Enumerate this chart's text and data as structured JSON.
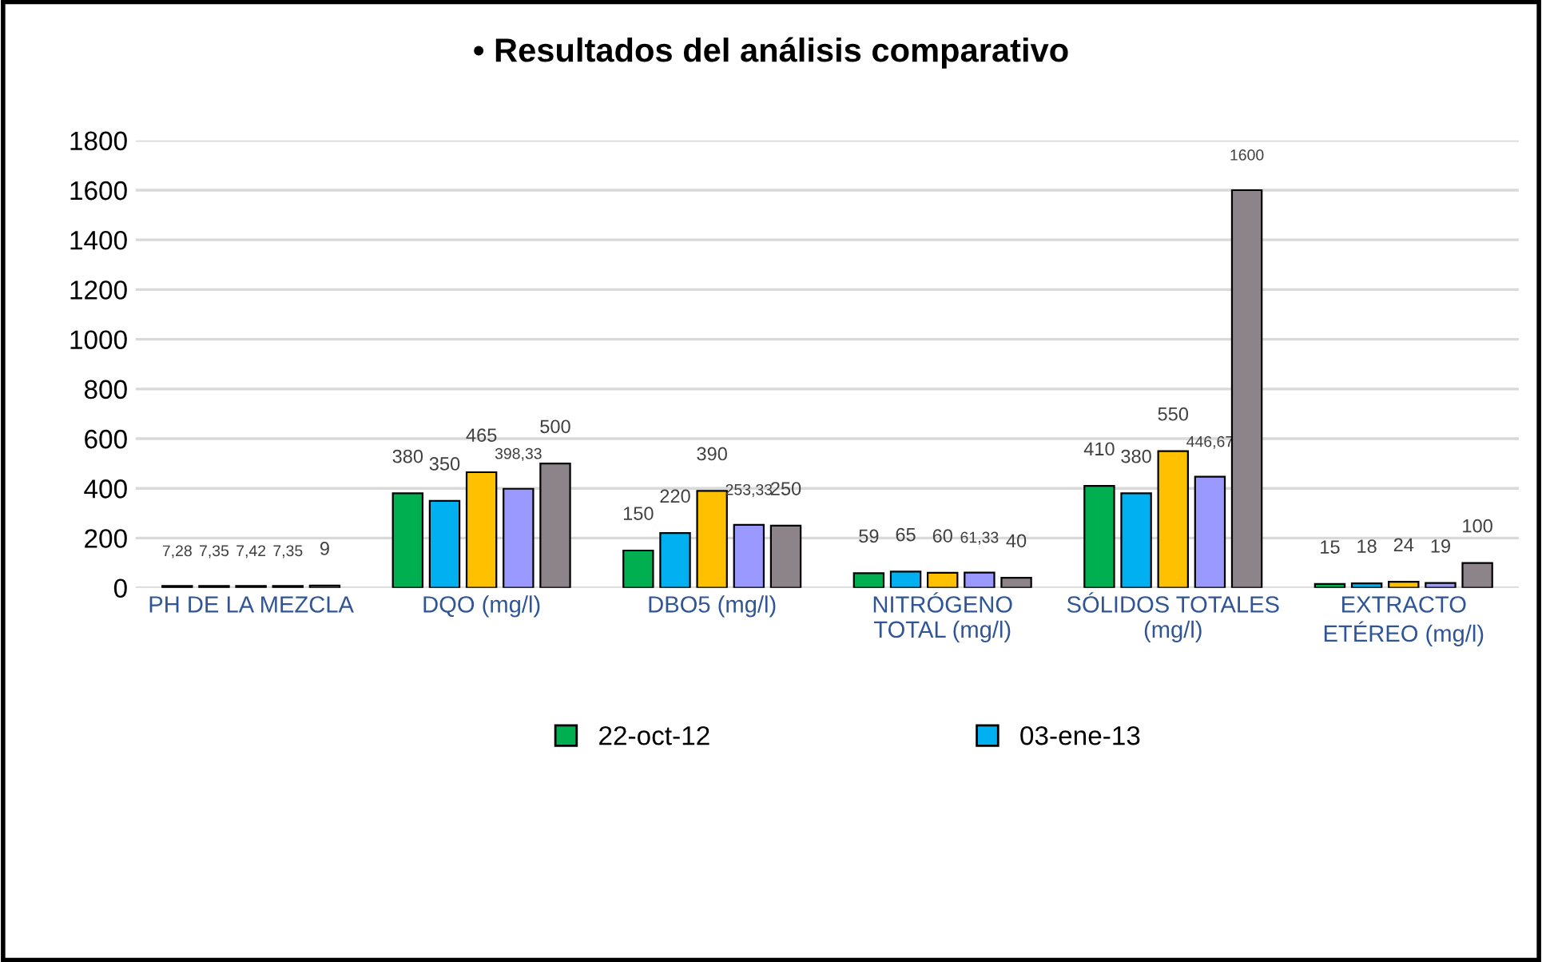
{
  "chart_data": {
    "type": "bar",
    "title": "• Resultados del análisis comparativo",
    "categories": [
      "PH DE LA MEZCLA",
      "DQO (mg/l)",
      "DBO5 (mg/l)",
      "NITRÓGENO\nTOTAL (mg/l)",
      "SÓLIDOS TOTALES\n(mg/l)",
      "EXTRACTO\nETÉREO (mg/l)"
    ],
    "series": [
      {
        "name": "22-oct-12",
        "color": "#00b050",
        "values": [
          7.28,
          380,
          150,
          59,
          410,
          15
        ],
        "value_labels": [
          "7,28",
          "380",
          "150",
          "59",
          "410",
          "15"
        ]
      },
      {
        "name": "03-ene-13",
        "color": "#00b0f0",
        "values": [
          7.35,
          350,
          220,
          65,
          380,
          18
        ],
        "value_labels": [
          "7,35",
          "350",
          "220",
          "65",
          "380",
          "18"
        ]
      },
      {
        "color": "#ffc000",
        "values": [
          7.42,
          465,
          390,
          60,
          550,
          24
        ],
        "value_labels": [
          "7,42",
          "465",
          "390",
          "60",
          "550",
          "24"
        ]
      },
      {
        "color": "#9999ff",
        "values": [
          7.35,
          398.33,
          253.33,
          61.33,
          446.67,
          19
        ],
        "value_labels": [
          "7,35",
          "398,33",
          "253,33",
          "61,33",
          "446,67",
          "19"
        ]
      },
      {
        "color": "#8c8489",
        "values": [
          9,
          500,
          250,
          40,
          1600,
          100
        ],
        "value_labels": [
          "9",
          "500",
          "250",
          "40",
          "1600",
          "100"
        ]
      }
    ],
    "ylim": [
      0,
      1800
    ],
    "yticks": [
      0,
      200,
      400,
      600,
      800,
      1000,
      1200,
      1400,
      1600,
      1800
    ],
    "grid": "y",
    "legend": "bottom"
  }
}
